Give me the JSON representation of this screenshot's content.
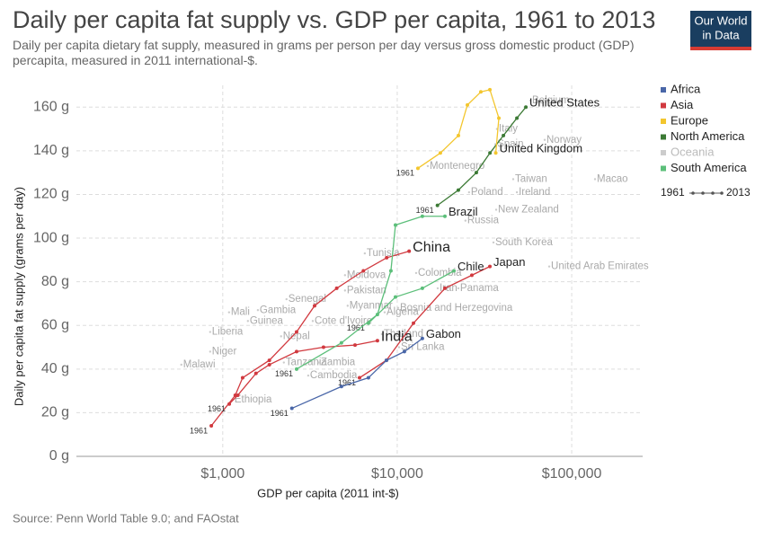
{
  "chart_data": {
    "type": "connected-scatter",
    "title": "Daily per capita fat supply vs. GDP per capita, 1961 to 2013",
    "subtitle": "Daily per capita dietary fat supply, measured in grams per person per day versus gross domestic product (GDP) percapita, measured in 2011 international-$.",
    "logo": [
      "Our World",
      "in Data"
    ],
    "x_label": "GDP per capita (2011 int-$)",
    "y_label": "Daily per capita fat supply (grams per day)",
    "source": "Source: Penn World Table 9.0; and FAOstat",
    "log_x": true,
    "grid": true,
    "xlim": [
      145,
      255000
    ],
    "ylim": [
      0,
      170
    ],
    "xticks": [
      {
        "value": 1000,
        "label": "$1,000"
      },
      {
        "value": 10000,
        "label": "$10,000"
      },
      {
        "value": 100000,
        "label": "$100,000"
      }
    ],
    "yticks": [
      {
        "value": 0,
        "label": "0 g"
      },
      {
        "value": 20,
        "label": "20 g"
      },
      {
        "value": 40,
        "label": "40 g"
      },
      {
        "value": 60,
        "label": "60 g"
      },
      {
        "value": 80,
        "label": "80 g"
      },
      {
        "value": 100,
        "label": "100 g"
      },
      {
        "value": 120,
        "label": "120 g"
      },
      {
        "value": 140,
        "label": "140 g"
      },
      {
        "value": 160,
        "label": "160 g"
      }
    ],
    "time_range": [
      1961,
      2013
    ],
    "legend": [
      {
        "name": "Africa",
        "color": "#4a67a8"
      },
      {
        "name": "Asia",
        "color": "#d1393f"
      },
      {
        "name": "Europe",
        "color": "#f3c62e"
      },
      {
        "name": "North America",
        "color": "#3c7a35"
      },
      {
        "name": "Oceania",
        "color": "#cccccc"
      },
      {
        "name": "South America",
        "color": "#5cbf7a"
      }
    ],
    "series": [
      {
        "name": "China",
        "color": "#d1393f",
        "x": [
          860,
          1180,
          1300,
          1850,
          2650,
          3360,
          4500,
          6400,
          8700,
          11700
        ],
        "y": [
          14,
          28,
          36,
          44,
          57,
          69,
          77,
          85,
          91,
          94
        ]
      },
      {
        "name": "India",
        "color": "#d1393f",
        "x": [
          1090,
          1220,
          1550,
          1850,
          2650,
          3780,
          5730,
          7700
        ],
        "y": [
          24,
          28,
          38,
          42,
          48,
          50,
          51,
          53
        ]
      },
      {
        "name": "Japan",
        "color": "#d1393f",
        "x": [
          6080,
          8670,
          12390,
          18760,
          26770,
          33960
        ],
        "y": [
          36,
          44,
          61,
          77,
          83,
          87
        ]
      },
      {
        "name": "Chile",
        "color": "#5cbf7a",
        "x": [
          6840,
          9770,
          13930,
          21130
        ],
        "y": [
          61,
          73,
          77,
          85
        ]
      },
      {
        "name": "Brazil",
        "color": "#5cbf7a",
        "x": [
          2650,
          4790,
          7700,
          9200,
          9770,
          13930,
          18760
        ],
        "y": [
          40,
          52,
          65,
          85,
          106,
          110,
          110
        ]
      },
      {
        "name": "Gabon",
        "color": "#4a67a8",
        "x": [
          2490,
          4790,
          6840,
          8670,
          10990,
          13930
        ],
        "y": [
          22,
          32,
          36,
          44,
          48,
          54
        ]
      },
      {
        "name": "United States",
        "color": "#3c7a35",
        "x": [
          17000,
          22400,
          28400,
          34000,
          40600,
          48500,
          54600
        ],
        "y": [
          115,
          122,
          130,
          139,
          147,
          155,
          160
        ]
      },
      {
        "name": "United Kingdom",
        "color": "#f3c62e",
        "x": [
          13140,
          17670,
          22420,
          25240,
          30140,
          33960,
          38240,
          36700
        ],
        "y": [
          132,
          139,
          147,
          161,
          167,
          168,
          155,
          139
        ]
      }
    ],
    "other_countries": [
      {
        "name": "Belgium",
        "x": 57900,
        "y": 163
      },
      {
        "name": "Italy",
        "x": 37300,
        "y": 150
      },
      {
        "name": "Spain",
        "x": 36500,
        "y": 143
      },
      {
        "name": "Norway",
        "x": 70000,
        "y": 145
      },
      {
        "name": "Montenegro",
        "x": 14970,
        "y": 133
      },
      {
        "name": "Taiwan",
        "x": 46200,
        "y": 127
      },
      {
        "name": "Ireland",
        "x": 48500,
        "y": 121
      },
      {
        "name": "Poland",
        "x": 25800,
        "y": 121
      },
      {
        "name": "New Zealand",
        "x": 36900,
        "y": 113
      },
      {
        "name": "Russia",
        "x": 24600,
        "y": 108
      },
      {
        "name": "South Korea",
        "x": 35600,
        "y": 98
      },
      {
        "name": "Macao",
        "x": 136000,
        "y": 127
      },
      {
        "name": "United Arab Emirates",
        "x": 74300,
        "y": 87
      },
      {
        "name": "Tunisia",
        "x": 6520,
        "y": 93
      },
      {
        "name": "Colombia",
        "x": 12830,
        "y": 84
      },
      {
        "name": "Moldova",
        "x": 5020,
        "y": 83
      },
      {
        "name": "Pakistan",
        "x": 5020,
        "y": 76
      },
      {
        "name": "Panama",
        "x": 22400,
        "y": 77
      },
      {
        "name": "Senegal",
        "x": 2320,
        "y": 72
      },
      {
        "name": "Gambia",
        "x": 1590,
        "y": 67
      },
      {
        "name": "Iran",
        "x": 17060,
        "y": 77
      },
      {
        "name": "Myanmar",
        "x": 5200,
        "y": 69
      },
      {
        "name": "Bosnia and Herzegovina",
        "x": 10120,
        "y": 68
      },
      {
        "name": "Mali",
        "x": 1087,
        "y": 66
      },
      {
        "name": "Guinea",
        "x": 1394,
        "y": 62
      },
      {
        "name": "Algeria",
        "x": 8470,
        "y": 66
      },
      {
        "name": "Cote d'Ivoire",
        "x": 3280,
        "y": 62
      },
      {
        "name": "Liberia",
        "x": 847,
        "y": 57
      },
      {
        "name": "Nepal",
        "x": 2160,
        "y": 55
      },
      {
        "name": "Thailand",
        "x": 8170,
        "y": 56
      },
      {
        "name": "Sri Lanka",
        "x": 10240,
        "y": 50
      },
      {
        "name": "Niger",
        "x": 847,
        "y": 48
      },
      {
        "name": "Malawi",
        "x": 579,
        "y": 42
      },
      {
        "name": "Tanzania",
        "x": 2240,
        "y": 43
      },
      {
        "name": "Zambia",
        "x": 3560,
        "y": 43
      },
      {
        "name": "Cambodia",
        "x": 3090,
        "y": 37
      },
      {
        "name": "Ethiopia",
        "x": 1140,
        "y": 26
      }
    ]
  }
}
